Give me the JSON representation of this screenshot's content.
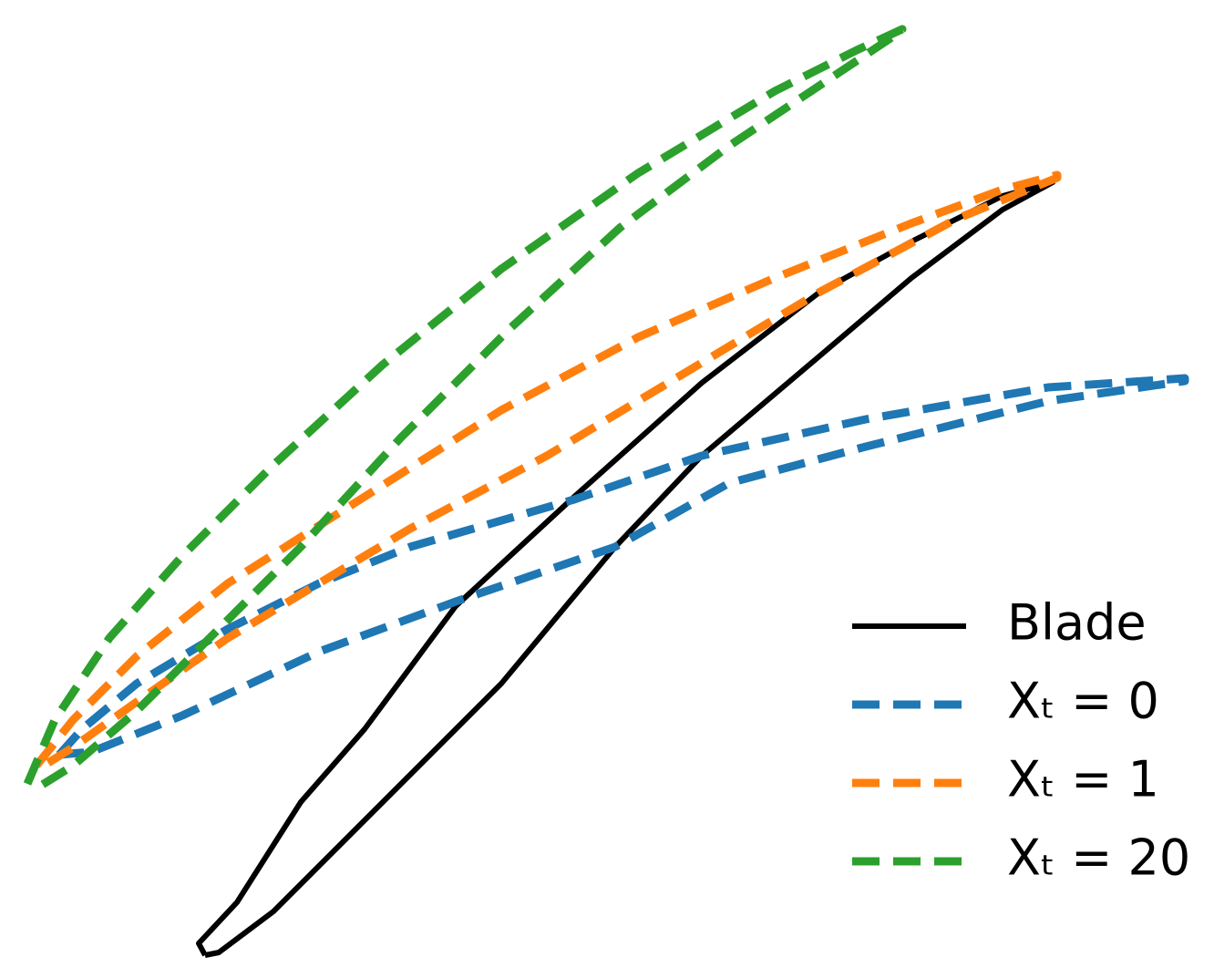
{
  "chart_data": {
    "type": "line",
    "legend": "lower right",
    "xlim": [
      0,
      13.32
    ],
    "ylim": [
      0,
      10.73
    ],
    "series": [
      {
        "name": "Blade",
        "color": "#000000",
        "style": "solid",
        "x": [
          2.25,
          2.18,
          2.6,
          3.3,
          4.0,
          5.0,
          6.3,
          7.7,
          9.0,
          10.0,
          11.0,
          11.55,
          11.0,
          10.0,
          9.0,
          7.7,
          6.75,
          5.5,
          4.0,
          3.0,
          2.4,
          2.25
        ],
        "values": [
          0.25,
          0.38,
          0.83,
          1.93,
          2.73,
          4.08,
          5.28,
          6.53,
          7.53,
          8.08,
          8.58,
          8.73,
          8.43,
          7.68,
          6.83,
          5.73,
          4.73,
          3.23,
          1.73,
          0.73,
          0.28,
          0.25
        ]
      },
      {
        "name": "Xₜ = 0",
        "color": "#1f77b4",
        "style": "dashed",
        "x": [
          0.65,
          0.9,
          1.5,
          2.5,
          3.5,
          4.5,
          6.3,
          7.7,
          9.5,
          11.5,
          13.0,
          13.0,
          11.5,
          9.5,
          8.0,
          6.75,
          5.0,
          3.5,
          2.0,
          1.0,
          0.65
        ],
        "values": [
          2.45,
          2.73,
          3.23,
          3.83,
          4.33,
          4.73,
          5.25,
          5.73,
          6.13,
          6.48,
          6.58,
          6.55,
          6.33,
          5.83,
          5.43,
          4.73,
          4.13,
          3.58,
          2.88,
          2.48,
          2.45
        ]
      },
      {
        "name": "Xₜ = 1",
        "color": "#ff7f0e",
        "style": "dashed",
        "x": [
          0.4,
          0.8,
          1.5,
          2.5,
          4.0,
          5.5,
          7.0,
          8.5,
          10.0,
          11.0,
          11.6,
          11.6,
          10.5,
          9.0,
          7.5,
          6.0,
          4.5,
          3.5,
          2.5,
          1.5,
          0.8,
          0.4
        ],
        "values": [
          2.33,
          2.83,
          3.53,
          4.33,
          5.28,
          6.23,
          7.03,
          7.68,
          8.28,
          8.65,
          8.81,
          8.78,
          8.33,
          7.53,
          6.63,
          5.73,
          4.93,
          4.33,
          3.73,
          3.03,
          2.53,
          2.28
        ]
      },
      {
        "name": "Xₜ = 20",
        "color": "#2ca02c",
        "style": "dashed",
        "x": [
          0.3,
          0.6,
          1.2,
          2.0,
          3.0,
          4.2,
          5.5,
          7.0,
          8.5,
          9.4,
          9.9,
          9.8,
          9.2,
          8.0,
          6.8,
          5.6,
          4.4,
          3.3,
          2.3,
          1.5,
          0.8,
          0.4
        ],
        "values": [
          2.13,
          2.83,
          3.73,
          4.63,
          5.63,
          6.73,
          7.78,
          8.83,
          9.73,
          10.18,
          10.41,
          10.33,
          9.93,
          9.13,
          8.23,
          7.13,
          5.93,
          4.73,
          3.73,
          2.93,
          2.33,
          2.08
        ]
      }
    ]
  }
}
